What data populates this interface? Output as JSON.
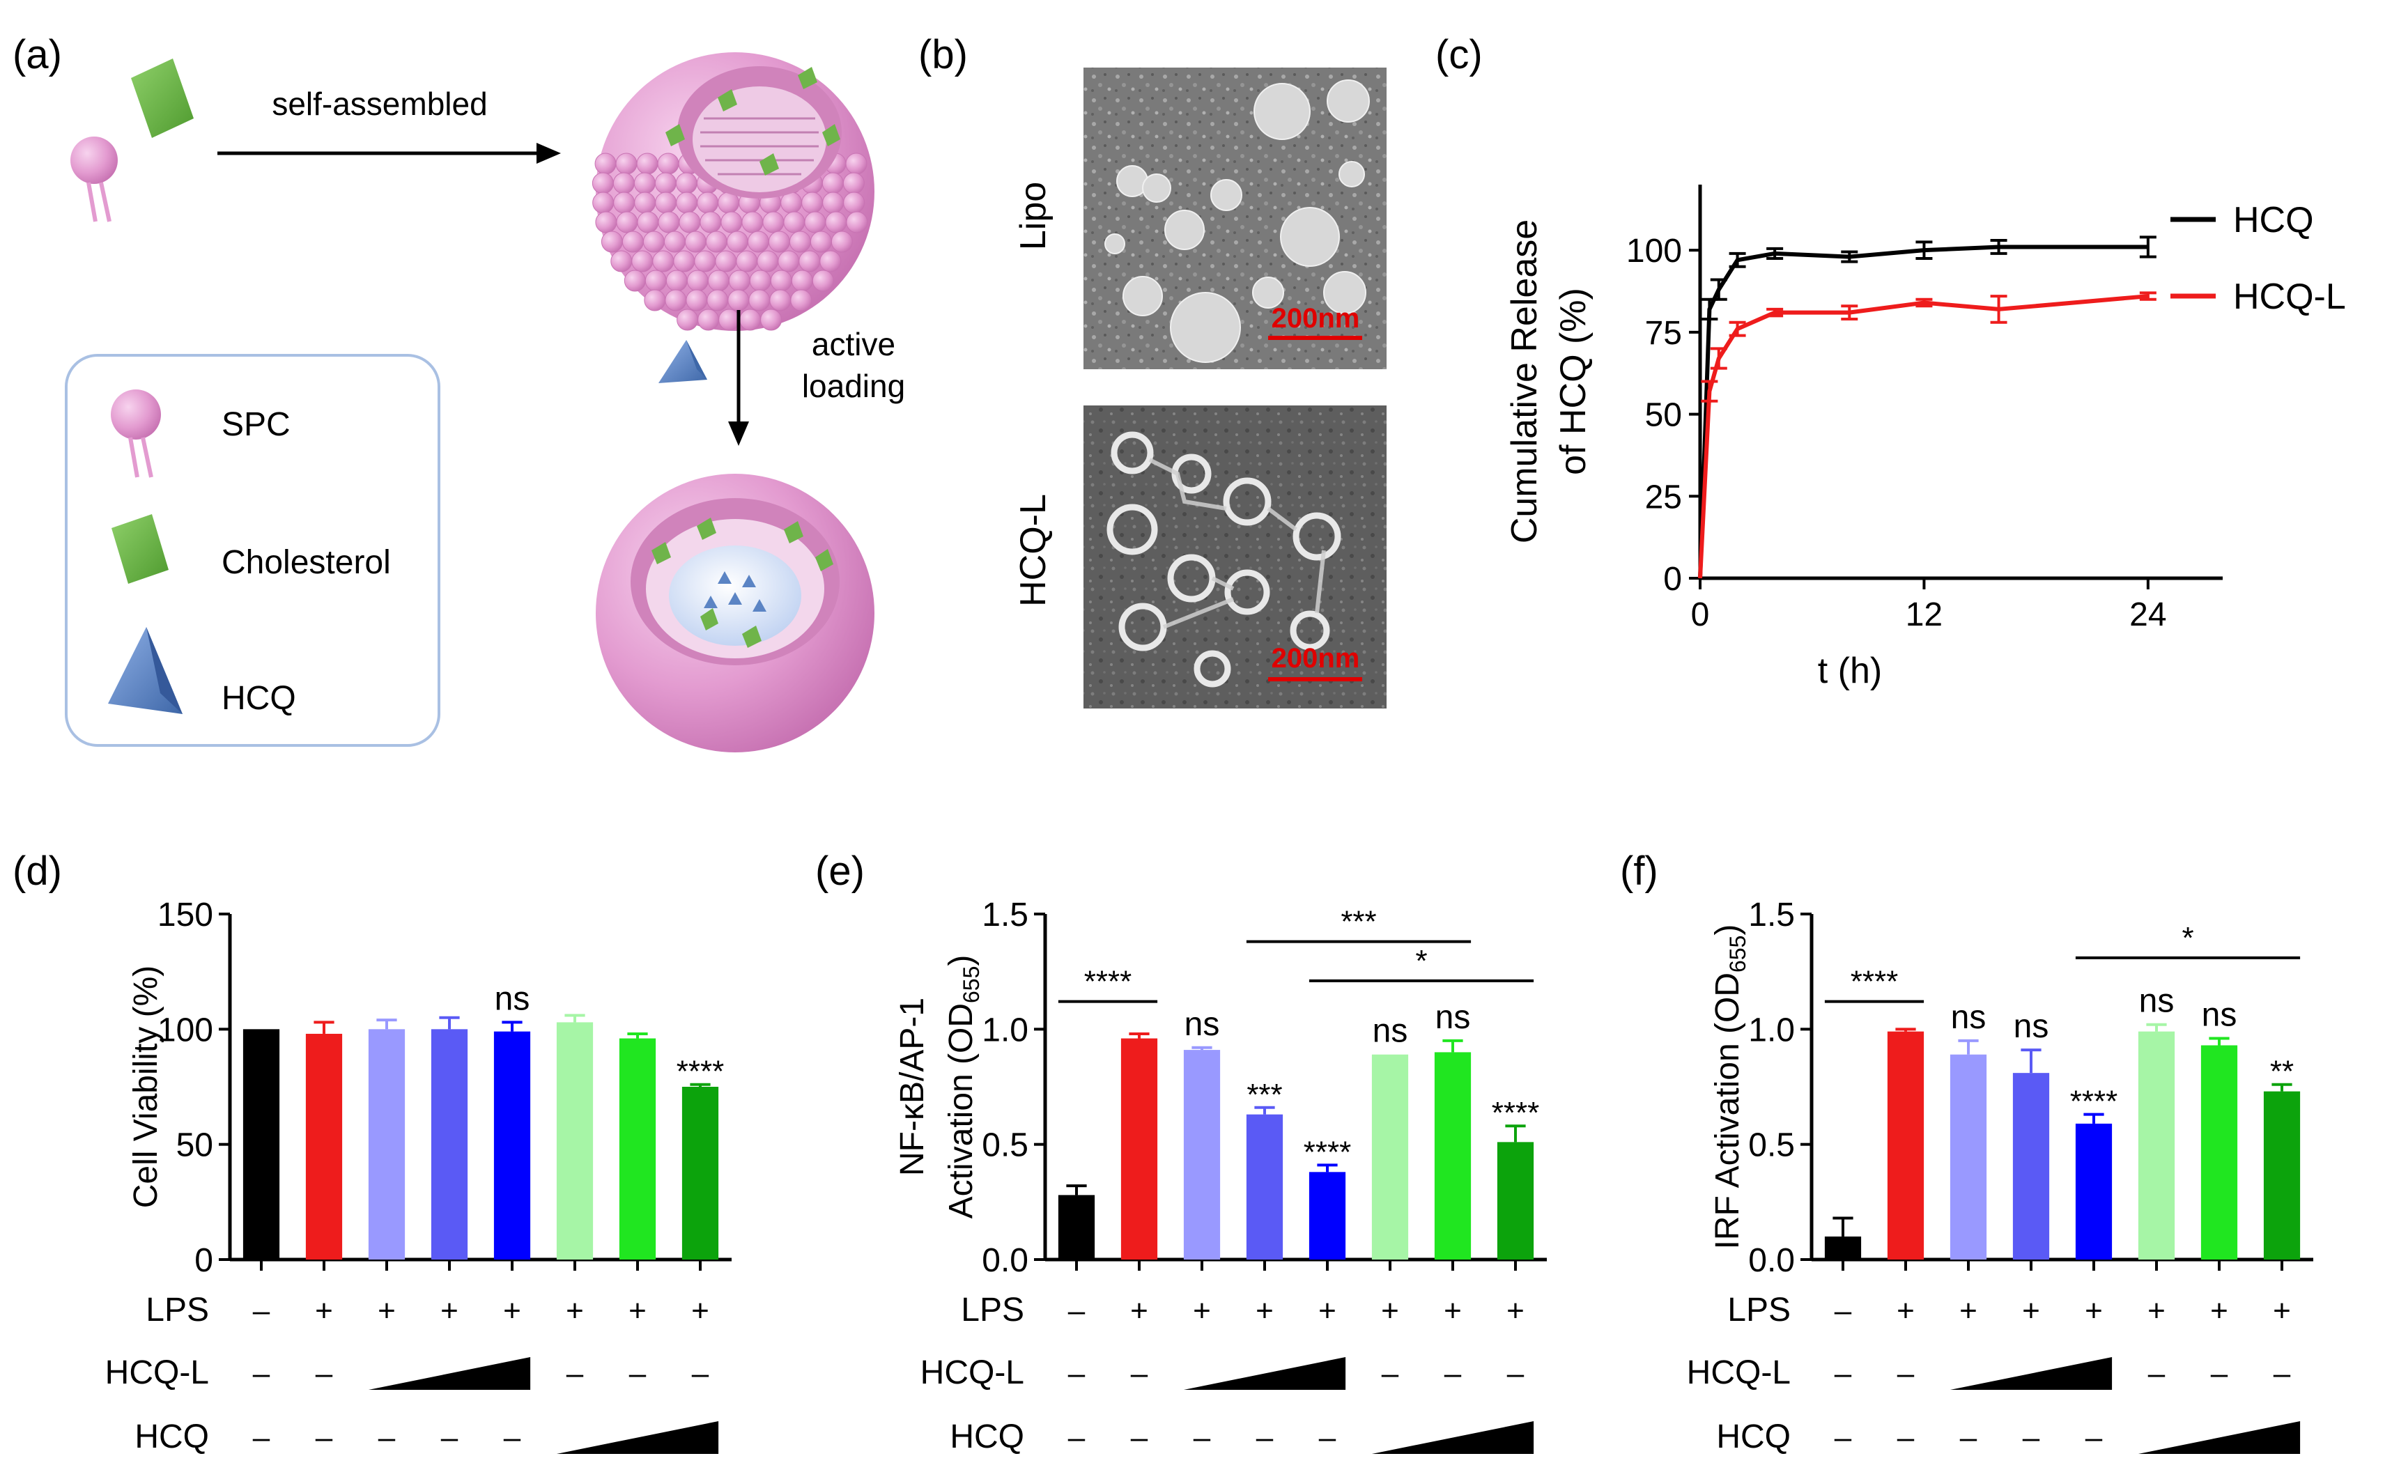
{
  "panel_labels": [
    "(a)",
    "(b)",
    "(c)",
    "(d)",
    "(e)",
    "(f)"
  ],
  "schematic": {
    "arrow1_label": "self-assembled",
    "arrow2_label_line1": "active",
    "arrow2_label_line2": "loading",
    "legend": [
      {
        "label": "SPC",
        "icon": "lipid-icon"
      },
      {
        "label": "Cholesterol",
        "icon": "cholesterol-block-icon"
      },
      {
        "label": "HCQ",
        "icon": "pyramid-icon"
      }
    ],
    "colors": {
      "lipid": "#e39bd0",
      "cholesterol": "#6fb44a",
      "hcq": "#5b84c4",
      "box": "#a9c0e3"
    }
  },
  "micrographs": {
    "rows": [
      {
        "label": "Lipo",
        "scale_bar": "200nm"
      },
      {
        "label": "HCQ-L",
        "scale_bar": "200nm"
      }
    ],
    "scale_color": "#e00000"
  },
  "chart_data": [
    {
      "panel": "(c)",
      "type": "line",
      "ylabel_line1": "Cumulative Release",
      "ylabel_line2": "of HCQ (%)",
      "xlabel": "t (h)",
      "xlim": [
        0,
        28
      ],
      "ylim": [
        0,
        120
      ],
      "xticks": [
        "0",
        "12",
        "24"
      ],
      "xtick_values": [
        0,
        12,
        24
      ],
      "yticks": [
        "0",
        "25",
        "50",
        "75",
        "100"
      ],
      "ytick_values": [
        0,
        25,
        50,
        75,
        100
      ],
      "series": [
        {
          "name": "HCQ",
          "color": "#000000",
          "x": [
            0,
            0.5,
            1,
            2,
            4,
            8,
            12,
            16,
            24
          ],
          "y": [
            0,
            82,
            88,
            97,
            99,
            98,
            100,
            101,
            101
          ],
          "err": [
            0,
            3,
            3,
            2,
            1.5,
            1.5,
            2.5,
            2,
            3
          ]
        },
        {
          "name": "HCQ-L",
          "color": "#ee1c1c",
          "x": [
            0,
            0.5,
            1,
            2,
            4,
            8,
            12,
            16,
            24
          ],
          "y": [
            0,
            57,
            67,
            76,
            81,
            81,
            84,
            82,
            86
          ],
          "err": [
            0,
            3,
            3,
            2,
            1,
            2,
            1,
            4,
            1
          ]
        }
      ]
    },
    {
      "panel": "(d)",
      "type": "bar",
      "ylabel_line1": "Cell Viability (%)",
      "ylabel_line2": "",
      "ylim": [
        0,
        150
      ],
      "yticks": [
        "0",
        "50",
        "100",
        "150"
      ],
      "ytick_values": [
        0,
        50,
        100,
        150
      ],
      "values": [
        100,
        98,
        100,
        100,
        99,
        103,
        96,
        75
      ],
      "errors": [
        0,
        5,
        4,
        5,
        4,
        3,
        2,
        1
      ],
      "colors": [
        "#000000",
        "#ee1c1c",
        "#9999ff",
        "#5a5af5",
        "#0000ff",
        "#a6f5a6",
        "#20e620",
        "#0ca30c"
      ],
      "annotations": [
        {
          "bar": 4,
          "text": "ns"
        },
        {
          "bar": 7,
          "text": "****"
        }
      ],
      "brackets": [],
      "lps": [
        "–",
        "+",
        "+",
        "+",
        "+",
        "+",
        "+",
        "+"
      ],
      "hcql": [
        "–",
        "–",
        "",
        "",
        "",
        "–",
        "–",
        "–"
      ],
      "hcq": [
        "–",
        "–",
        "–",
        "–",
        "–",
        "",
        "",
        ""
      ],
      "row_labels": [
        "LPS",
        "HCQ-L",
        "HCQ"
      ]
    },
    {
      "panel": "(e)",
      "type": "bar",
      "ylabel_line1": "NF-κB/AP-1",
      "ylabel_line2": "Activation (OD",
      "ylabel_sub": "655",
      "ylim": [
        0,
        1.5
      ],
      "yticks": [
        "0.0",
        "0.5",
        "1.0",
        "1.5"
      ],
      "ytick_values": [
        0,
        0.5,
        1.0,
        1.5
      ],
      "values": [
        0.28,
        0.96,
        0.91,
        0.63,
        0.38,
        0.89,
        0.9,
        0.51
      ],
      "errors": [
        0.04,
        0.02,
        0.01,
        0.03,
        0.03,
        0.0,
        0.05,
        0.07
      ],
      "colors": [
        "#000000",
        "#ee1c1c",
        "#9999ff",
        "#5a5af5",
        "#0000ff",
        "#a6f5a6",
        "#20e620",
        "#0ca30c"
      ],
      "annotations": [
        {
          "bar": 2,
          "text": "ns"
        },
        {
          "bar": 3,
          "text": "***"
        },
        {
          "bar": 4,
          "text": "****"
        },
        {
          "bar": 5,
          "text": "ns"
        },
        {
          "bar": 6,
          "text": "ns"
        },
        {
          "bar": 7,
          "text": "****"
        }
      ],
      "brackets": [
        {
          "from": 0,
          "to": 1,
          "level": 1.12,
          "text": "****"
        },
        {
          "from": 3,
          "to": 6,
          "level": 1.38,
          "text": "***"
        },
        {
          "from": 4,
          "to": 7,
          "level": 1.21,
          "text": "*"
        }
      ],
      "lps": [
        "–",
        "+",
        "+",
        "+",
        "+",
        "+",
        "+",
        "+"
      ],
      "hcql": [
        "–",
        "–",
        "",
        "",
        "",
        "–",
        "–",
        "–"
      ],
      "hcq": [
        "–",
        "–",
        "–",
        "–",
        "–",
        "",
        "",
        ""
      ],
      "row_labels": [
        "LPS",
        "HCQ-L",
        "HCQ"
      ]
    },
    {
      "panel": "(f)",
      "type": "bar",
      "ylabel_line1": "IRF Activation (OD",
      "ylabel_line2": "",
      "ylabel_sub": "655",
      "ylim": [
        0,
        1.5
      ],
      "yticks": [
        "0.0",
        "0.5",
        "1.0",
        "1.5"
      ],
      "ytick_values": [
        0,
        0.5,
        1.0,
        1.5
      ],
      "values": [
        0.1,
        0.99,
        0.89,
        0.81,
        0.59,
        0.99,
        0.93,
        0.73
      ],
      "errors": [
        0.08,
        0.01,
        0.06,
        0.1,
        0.04,
        0.03,
        0.03,
        0.03
      ],
      "colors": [
        "#000000",
        "#ee1c1c",
        "#9999ff",
        "#5a5af5",
        "#0000ff",
        "#a6f5a6",
        "#20e620",
        "#0ca30c"
      ],
      "annotations": [
        {
          "bar": 2,
          "text": "ns"
        },
        {
          "bar": 3,
          "text": "ns"
        },
        {
          "bar": 4,
          "text": "****"
        },
        {
          "bar": 5,
          "text": "ns"
        },
        {
          "bar": 6,
          "text": "ns"
        },
        {
          "bar": 7,
          "text": "**"
        }
      ],
      "brackets": [
        {
          "from": 0,
          "to": 1,
          "level": 1.12,
          "text": "****"
        },
        {
          "from": 4,
          "to": 7,
          "level": 1.31,
          "text": "*"
        }
      ],
      "lps": [
        "–",
        "+",
        "+",
        "+",
        "+",
        "+",
        "+",
        "+"
      ],
      "hcql": [
        "–",
        "–",
        "",
        "",
        "",
        "–",
        "–",
        "–"
      ],
      "hcq": [
        "–",
        "–",
        "–",
        "–",
        "–",
        "",
        "",
        ""
      ],
      "row_labels": [
        "LPS",
        "HCQ-L",
        "HCQ"
      ]
    }
  ]
}
